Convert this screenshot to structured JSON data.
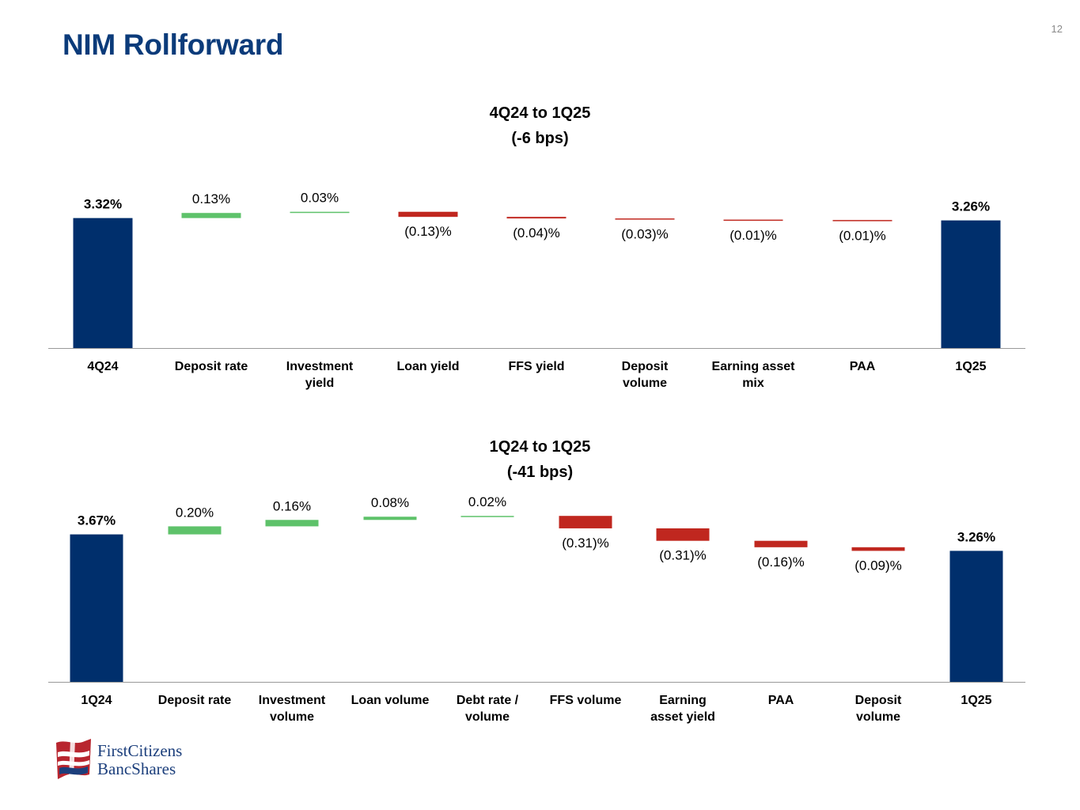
{
  "page": {
    "title": "NIM Rollforward",
    "page_number": "12"
  },
  "logo": {
    "line1": "FirstCitizens",
    "line2": "BancShares"
  },
  "colors": {
    "total": "#002f6c",
    "positive": "#5ec26a",
    "negative": "#c0271f",
    "title": "#0b3b7a",
    "axis": "#999999"
  },
  "chart_data": [
    {
      "type": "waterfall",
      "title": "4Q24 to 1Q25",
      "subtitle": "(-6 bps)",
      "start": {
        "label": "4Q24",
        "value": 3.32,
        "display": "3.32%"
      },
      "end": {
        "label": "1Q25",
        "value": 3.26,
        "display": "3.26%"
      },
      "steps": [
        {
          "category": "Deposit rate",
          "value": 0.13,
          "display": "0.13%"
        },
        {
          "category": "Investment yield",
          "value": 0.03,
          "display": "0.03%"
        },
        {
          "category": "Loan yield",
          "value": -0.13,
          "display": "(0.13)%"
        },
        {
          "category": "FFS yield",
          "value": -0.04,
          "display": "(0.04)%"
        },
        {
          "category": "Deposit volume",
          "value": -0.03,
          "display": "(0.03)%"
        },
        {
          "category": "Earning asset mix",
          "value": -0.01,
          "display": "(0.01)%"
        },
        {
          "category": "PAA",
          "value": -0.01,
          "display": "(0.01)%"
        }
      ]
    },
    {
      "type": "waterfall",
      "title": "1Q24 to 1Q25",
      "subtitle": "(-41 bps)",
      "start": {
        "label": "1Q24",
        "value": 3.67,
        "display": "3.67%"
      },
      "end": {
        "label": "1Q25",
        "value": 3.26,
        "display": "3.26%"
      },
      "steps": [
        {
          "category": "Deposit rate",
          "value": 0.2,
          "display": "0.20%"
        },
        {
          "category": "Investment volume",
          "value": 0.16,
          "display": "0.16%"
        },
        {
          "category": "Loan volume",
          "value": 0.08,
          "display": "0.08%"
        },
        {
          "category": "Debt rate / volume",
          "value": 0.02,
          "display": "0.02%"
        },
        {
          "category": "FFS volume",
          "value": -0.31,
          "display": "(0.31)%"
        },
        {
          "category": "Earning asset yield",
          "value": -0.31,
          "display": "(0.31)%"
        },
        {
          "category": "PAA",
          "value": -0.16,
          "display": "(0.16)%"
        },
        {
          "category": "Deposit volume",
          "value": -0.09,
          "display": "(0.09)%"
        }
      ]
    }
  ]
}
